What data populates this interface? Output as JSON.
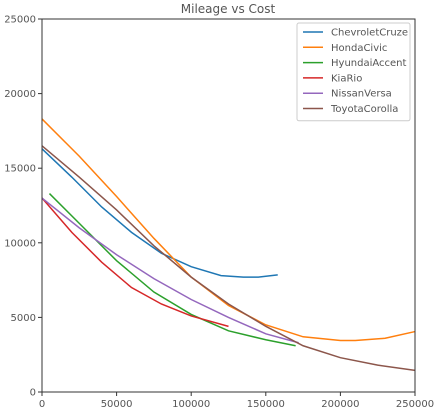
{
  "chart_data": {
    "type": "line",
    "title": "Mileage vs Cost",
    "xlabel": "",
    "ylabel": "",
    "xlim": [
      0,
      250000
    ],
    "ylim": [
      0,
      25000
    ],
    "x_ticks": [
      0,
      50000,
      100000,
      150000,
      200000,
      250000
    ],
    "x_tick_labels": [
      "0",
      "50000",
      "100000",
      "150000",
      "200000",
      "250000"
    ],
    "y_ticks": [
      0,
      5000,
      10000,
      15000,
      20000,
      25000
    ],
    "y_tick_labels": [
      "0",
      "5000",
      "10000",
      "15000",
      "20000",
      "25000"
    ],
    "grid": false,
    "legend_position": "top-right",
    "series": [
      {
        "name": "ChevroletCruze",
        "color": "#1f77b4",
        "points": [
          [
            0,
            16300
          ],
          [
            20000,
            14400
          ],
          [
            40000,
            12400
          ],
          [
            60000,
            10700
          ],
          [
            80000,
            9300
          ],
          [
            100000,
            8400
          ],
          [
            120000,
            7800
          ],
          [
            135000,
            7700
          ],
          [
            145000,
            7700
          ],
          [
            158000,
            7850
          ]
        ]
      },
      {
        "name": "HondaCivic",
        "color": "#ff7f0e",
        "points": [
          [
            0,
            18300
          ],
          [
            25000,
            15800
          ],
          [
            50000,
            13100
          ],
          [
            75000,
            10300
          ],
          [
            100000,
            7700
          ],
          [
            125000,
            5800
          ],
          [
            150000,
            4500
          ],
          [
            175000,
            3700
          ],
          [
            200000,
            3450
          ],
          [
            210000,
            3450
          ],
          [
            230000,
            3600
          ],
          [
            250000,
            4050
          ]
        ]
      },
      {
        "name": "HyundaiAccent",
        "color": "#2ca02c",
        "points": [
          [
            5000,
            13300
          ],
          [
            25000,
            11300
          ],
          [
            50000,
            8800
          ],
          [
            75000,
            6700
          ],
          [
            100000,
            5200
          ],
          [
            125000,
            4100
          ],
          [
            150000,
            3500
          ],
          [
            170000,
            3100
          ]
        ]
      },
      {
        "name": "KiaRio",
        "color": "#d62728",
        "points": [
          [
            0,
            13000
          ],
          [
            20000,
            10700
          ],
          [
            40000,
            8700
          ],
          [
            60000,
            7000
          ],
          [
            80000,
            5900
          ],
          [
            100000,
            5100
          ],
          [
            125000,
            4400
          ]
        ]
      },
      {
        "name": "NissanVersa",
        "color": "#9467bd",
        "points": [
          [
            0,
            13000
          ],
          [
            25000,
            11000
          ],
          [
            50000,
            9200
          ],
          [
            75000,
            7600
          ],
          [
            100000,
            6200
          ],
          [
            125000,
            5000
          ],
          [
            150000,
            3900
          ],
          [
            172000,
            3300
          ]
        ]
      },
      {
        "name": "ToyotaCorolla",
        "color": "#8c564b",
        "points": [
          [
            0,
            16500
          ],
          [
            25000,
            14400
          ],
          [
            50000,
            12200
          ],
          [
            75000,
            9800
          ],
          [
            100000,
            7700
          ],
          [
            125000,
            5900
          ],
          [
            150000,
            4400
          ],
          [
            175000,
            3100
          ],
          [
            200000,
            2300
          ],
          [
            225000,
            1800
          ],
          [
            250000,
            1450
          ]
        ]
      }
    ]
  }
}
